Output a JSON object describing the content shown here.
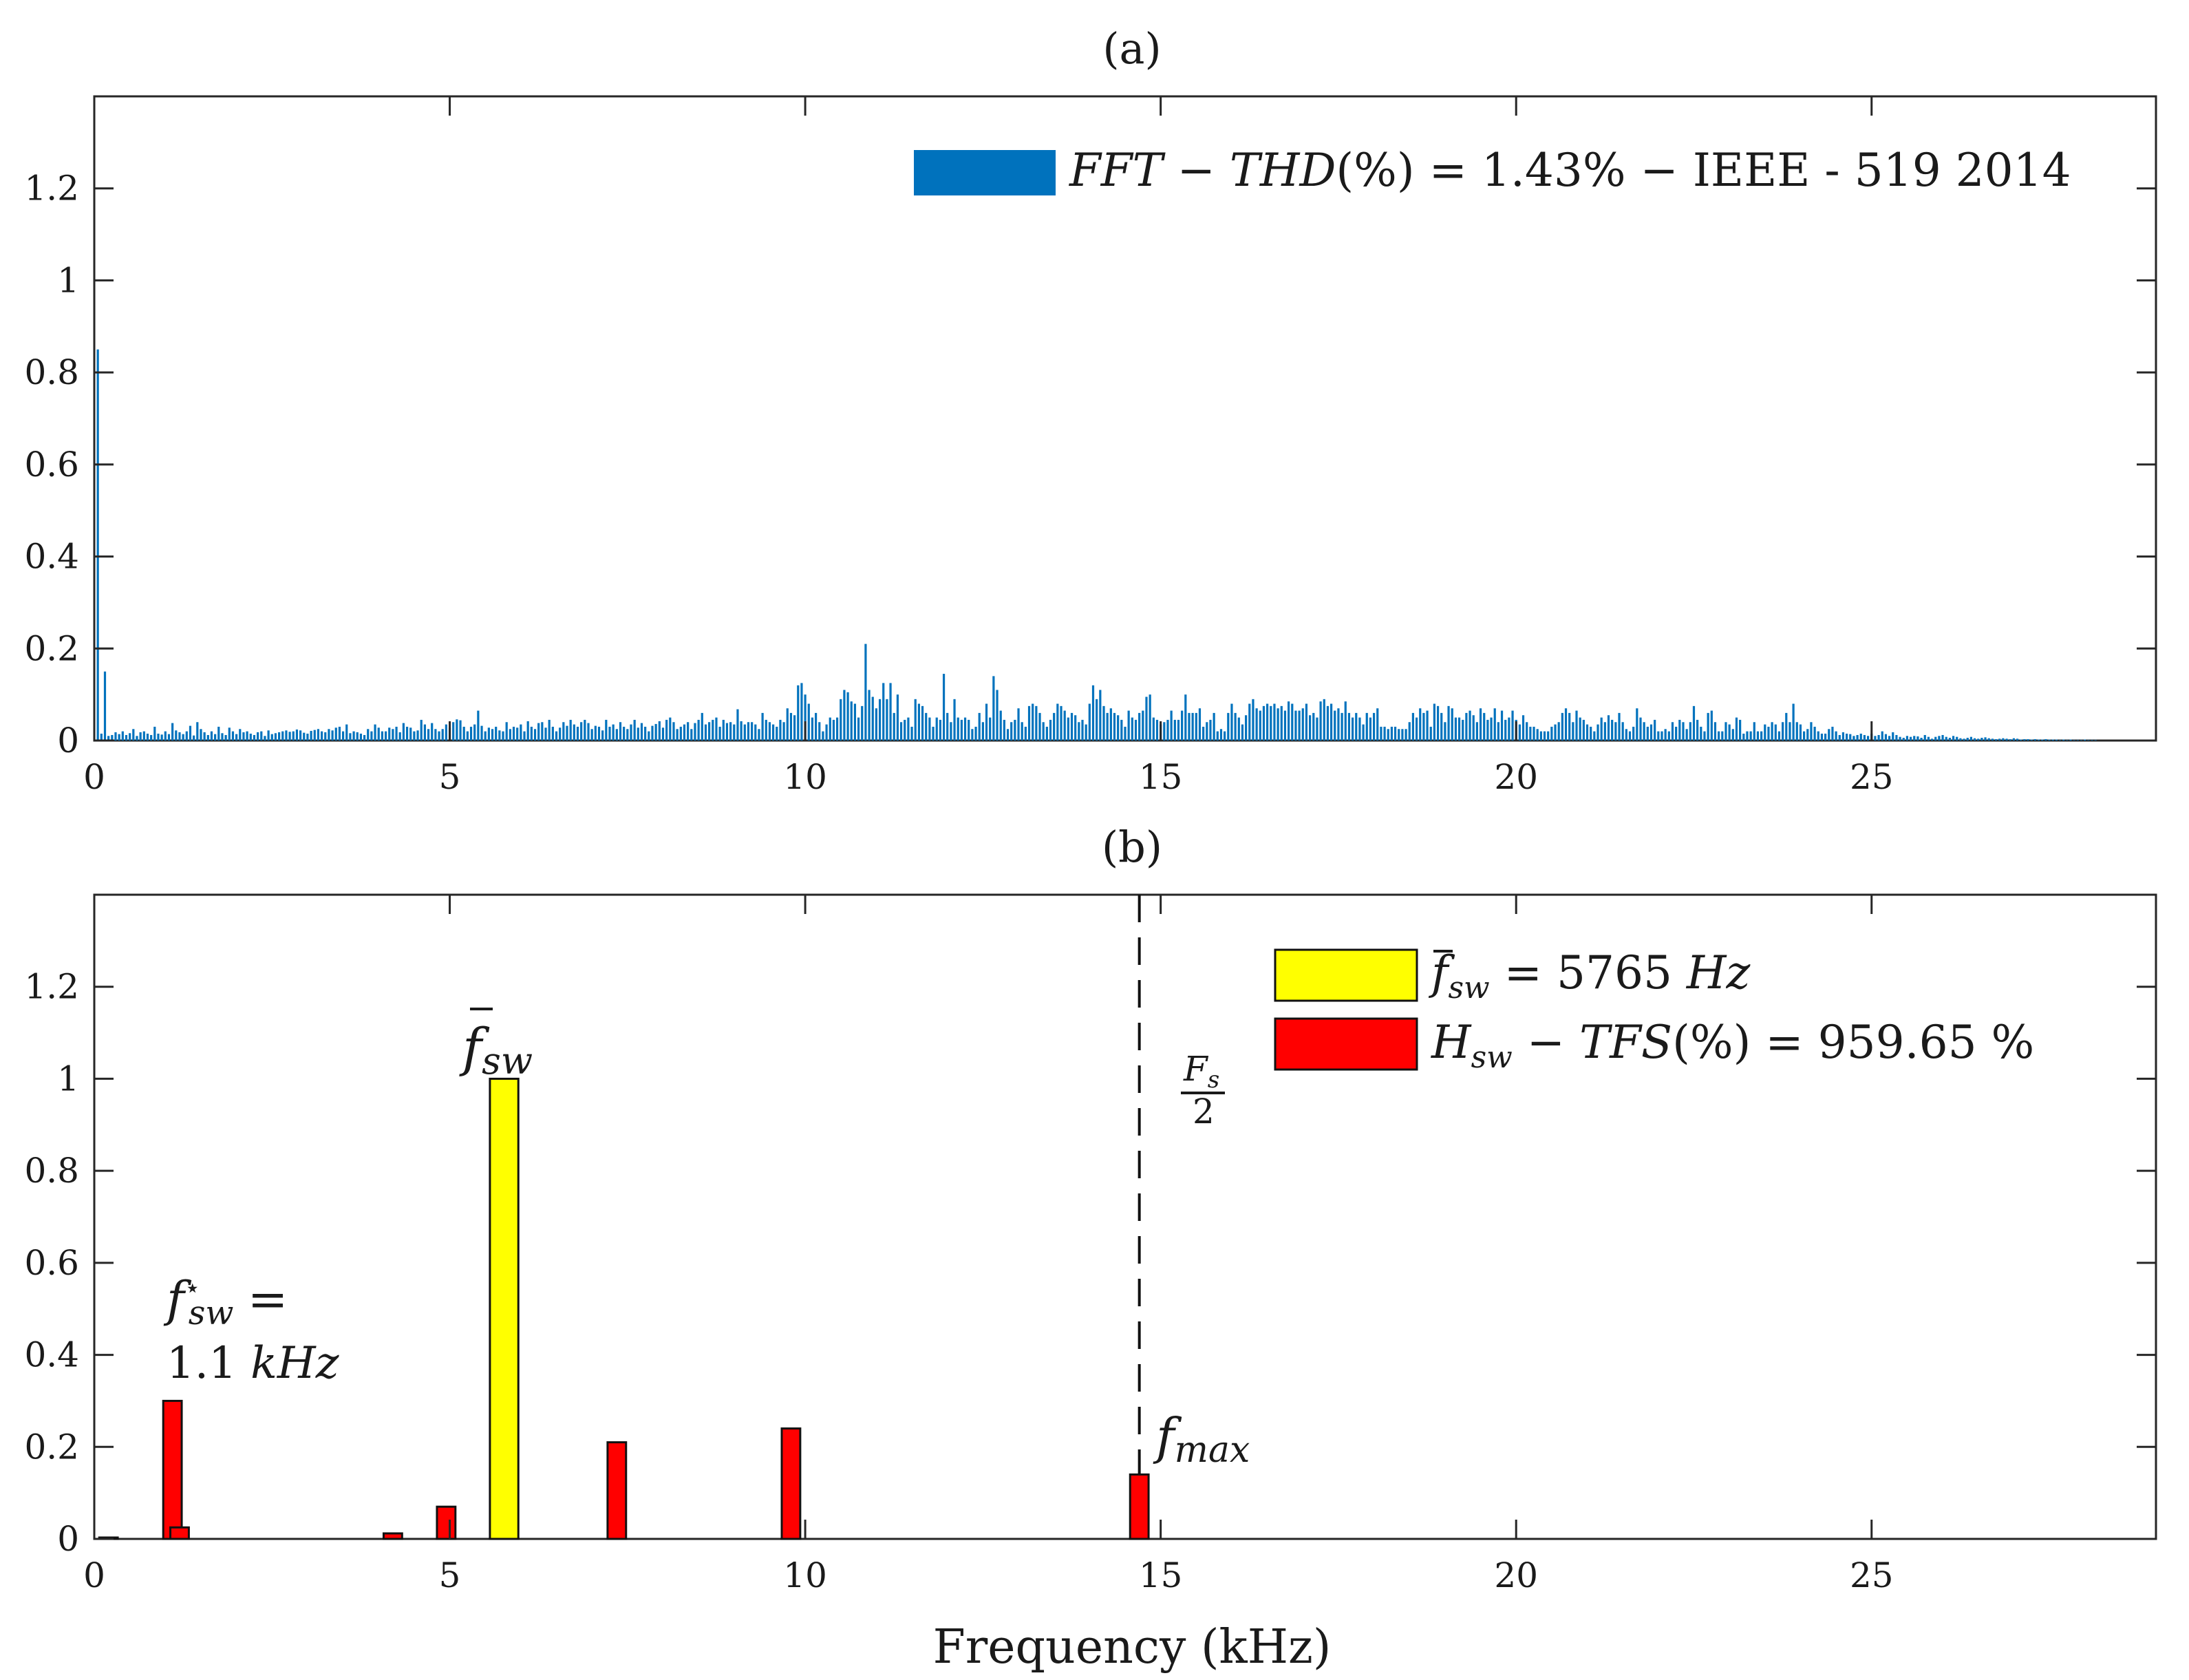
{
  "chart_data": [
    {
      "panel": "a",
      "title": "(a)",
      "type": "bar",
      "xlim": [
        0,
        29
      ],
      "ylim": [
        0,
        1.4
      ],
      "xticks": [
        0,
        5,
        10,
        15,
        20,
        25
      ],
      "xtick_labels": [
        "0",
        "5",
        "10",
        "15",
        "20",
        "25"
      ],
      "yticks": [
        0,
        0.2,
        0.4,
        0.6,
        0.8,
        1,
        1.2
      ],
      "ytick_labels": [
        "0",
        "0.2",
        "0.4",
        "0.6",
        "0.8",
        "1",
        "1.2"
      ],
      "xlabel": "",
      "ylabel": "",
      "color": "#0072bd",
      "legend": {
        "entries": [
          {
            "label": "FFT − THD(%) = 1.43% − IEEE - 519 2014",
            "color": "#0072bd"
          }
        ],
        "location": "top-right"
      },
      "series": [
        {
          "name": "FFT − THD(%) = 1.43% − IEEE - 519 2014",
          "bin_width_khz": 0.05,
          "x_start_khz": 0.05,
          "values": [
            0.85,
            0.015,
            0.15,
            0.01,
            0.012,
            0.018,
            0.014,
            0.02,
            0.012,
            0.016,
            0.025,
            0.01,
            0.018,
            0.02,
            0.015,
            0.012,
            0.03,
            0.015,
            0.013,
            0.02,
            0.014,
            0.038,
            0.022,
            0.018,
            0.014,
            0.02,
            0.032,
            0.011,
            0.04,
            0.025,
            0.018,
            0.012,
            0.02,
            0.014,
            0.03,
            0.016,
            0.012,
            0.028,
            0.02,
            0.014,
            0.025,
            0.018,
            0.02,
            0.015,
            0.012,
            0.018,
            0.02,
            0.01,
            0.022,
            0.014,
            0.016,
            0.018,
            0.02,
            0.022,
            0.019,
            0.02,
            0.024,
            0.022,
            0.017,
            0.015,
            0.021,
            0.023,
            0.025,
            0.02,
            0.018,
            0.025,
            0.022,
            0.028,
            0.03,
            0.02,
            0.035,
            0.016,
            0.02,
            0.018,
            0.015,
            0.012,
            0.025,
            0.02,
            0.035,
            0.028,
            0.02,
            0.02,
            0.028,
            0.025,
            0.03,
            0.018,
            0.038,
            0.03,
            0.028,
            0.02,
            0.022,
            0.045,
            0.035,
            0.025,
            0.038,
            0.025,
            0.02,
            0.025,
            0.035,
            0.028,
            0.04,
            0.046,
            0.044,
            0.03,
            0.02,
            0.03,
            0.035,
            0.065,
            0.032,
            0.02,
            0.028,
            0.025,
            0.03,
            0.022,
            0.02,
            0.04,
            0.025,
            0.03,
            0.028,
            0.035,
            0.02,
            0.042,
            0.03,
            0.025,
            0.038,
            0.04,
            0.028,
            0.045,
            0.03,
            0.02,
            0.028,
            0.04,
            0.032,
            0.045,
            0.035,
            0.03,
            0.04,
            0.045,
            0.038,
            0.025,
            0.032,
            0.03,
            0.022,
            0.045,
            0.03,
            0.035,
            0.025,
            0.04,
            0.03,
            0.025,
            0.035,
            0.045,
            0.028,
            0.038,
            0.03,
            0.02,
            0.032,
            0.036,
            0.042,
            0.028,
            0.045,
            0.05,
            0.04,
            0.025,
            0.03,
            0.035,
            0.04,
            0.025,
            0.038,
            0.045,
            0.06,
            0.035,
            0.04,
            0.045,
            0.05,
            0.03,
            0.045,
            0.038,
            0.04,
            0.035,
            0.068,
            0.042,
            0.035,
            0.04,
            0.04,
            0.035,
            0.025,
            0.06,
            0.045,
            0.04,
            0.035,
            0.03,
            0.045,
            0.04,
            0.07,
            0.06,
            0.055,
            0.12,
            0.125,
            0.1,
            0.08,
            0.05,
            0.06,
            0.04,
            0.02,
            0.035,
            0.05,
            0.045,
            0.05,
            0.09,
            0.11,
            0.105,
            0.085,
            0.08,
            0.05,
            0.075,
            0.21,
            0.11,
            0.095,
            0.07,
            0.09,
            0.125,
            0.09,
            0.125,
            0.06,
            0.1,
            0.04,
            0.045,
            0.05,
            0.03,
            0.09,
            0.08,
            0.075,
            0.06,
            0.05,
            0.03,
            0.05,
            0.045,
            0.145,
            0.06,
            0.04,
            0.09,
            0.05,
            0.045,
            0.05,
            0.045,
            0.025,
            0.03,
            0.06,
            0.04,
            0.08,
            0.05,
            0.14,
            0.11,
            0.065,
            0.045,
            0.025,
            0.04,
            0.045,
            0.07,
            0.04,
            0.03,
            0.075,
            0.08,
            0.075,
            0.06,
            0.04,
            0.03,
            0.045,
            0.06,
            0.08,
            0.075,
            0.065,
            0.05,
            0.06,
            0.055,
            0.04,
            0.045,
            0.035,
            0.08,
            0.12,
            0.09,
            0.11,
            0.075,
            0.06,
            0.07,
            0.06,
            0.055,
            0.045,
            0.03,
            0.065,
            0.05,
            0.045,
            0.06,
            0.065,
            0.095,
            0.1,
            0.05,
            0.045,
            0.035,
            0.04,
            0.045,
            0.065,
            0.045,
            0.045,
            0.065,
            0.1,
            0.06,
            0.06,
            0.06,
            0.07,
            0.03,
            0.04,
            0.045,
            0.06,
            0.02,
            0.025,
            0.02,
            0.06,
            0.08,
            0.06,
            0.05,
            0.035,
            0.055,
            0.08,
            0.09,
            0.07,
            0.065,
            0.075,
            0.08,
            0.075,
            0.08,
            0.07,
            0.075,
            0.065,
            0.085,
            0.08,
            0.065,
            0.065,
            0.07,
            0.08,
            0.055,
            0.06,
            0.05,
            0.085,
            0.09,
            0.075,
            0.08,
            0.065,
            0.07,
            0.06,
            0.085,
            0.06,
            0.05,
            0.06,
            0.05,
            0.035,
            0.06,
            0.05,
            0.06,
            0.07,
            0.03,
            0.03,
            0.025,
            0.03,
            0.03,
            0.025,
            0.025,
            0.025,
            0.04,
            0.06,
            0.05,
            0.07,
            0.06,
            0.065,
            0.03,
            0.08,
            0.075,
            0.06,
            0.04,
            0.075,
            0.07,
            0.05,
            0.05,
            0.045,
            0.06,
            0.065,
            0.055,
            0.04,
            0.07,
            0.06,
            0.045,
            0.05,
            0.07,
            0.04,
            0.065,
            0.045,
            0.05,
            0.065,
            0.045,
            0.035,
            0.055,
            0.04,
            0.03,
            0.03,
            0.025,
            0.02,
            0.02,
            0.02,
            0.03,
            0.035,
            0.04,
            0.06,
            0.07,
            0.06,
            0.04,
            0.065,
            0.05,
            0.045,
            0.035,
            0.03,
            0.02,
            0.035,
            0.05,
            0.04,
            0.055,
            0.045,
            0.04,
            0.06,
            0.04,
            0.025,
            0.02,
            0.03,
            0.07,
            0.05,
            0.04,
            0.03,
            0.035,
            0.045,
            0.02,
            0.02,
            0.025,
            0.02,
            0.04,
            0.03,
            0.045,
            0.04,
            0.025,
            0.04,
            0.075,
            0.045,
            0.03,
            0.02,
            0.06,
            0.065,
            0.04,
            0.02,
            0.02,
            0.04,
            0.035,
            0.025,
            0.05,
            0.045,
            0.015,
            0.02,
            0.02,
            0.04,
            0.02,
            0.02,
            0.035,
            0.03,
            0.04,
            0.035,
            0.02,
            0.04,
            0.06,
            0.04,
            0.08,
            0.04,
            0.035,
            0.02,
            0.025,
            0.04,
            0.03,
            0.02,
            0.015,
            0.015,
            0.025,
            0.03,
            0.02,
            0.012,
            0.018,
            0.015,
            0.014,
            0.01,
            0.012,
            0.015,
            0.012,
            0.01,
            0.015,
            0.01,
            0.012,
            0.02,
            0.014,
            0.01,
            0.018,
            0.012,
            0.008,
            0.006,
            0.01,
            0.008,
            0.01,
            0.009,
            0.006,
            0.012,
            0.008,
            0.004,
            0.008,
            0.01,
            0.012,
            0.008,
            0.006,
            0.01,
            0.008,
            0.005,
            0.004,
            0.006,
            0.008,
            0.005,
            0.004,
            0.006,
            0.007,
            0.005,
            0.004,
            0.003,
            0.004,
            0.005,
            0.004,
            0.003,
            0.005,
            0.004,
            0.002,
            0.003,
            0.003,
            0.002,
            0.003,
            0.002,
            0.002,
            0.003,
            0.002,
            0.002,
            0.002,
            0.001,
            0.002,
            0.001,
            0.002,
            0.001,
            0.001,
            0.001,
            0.002,
            0.001,
            0.001,
            0.001
          ]
        }
      ]
    },
    {
      "panel": "b",
      "title": "(b)",
      "type": "bar",
      "xlim": [
        0,
        29
      ],
      "ylim": [
        0,
        1.4
      ],
      "xticks": [
        0,
        5,
        10,
        15,
        20,
        25
      ],
      "xtick_labels": [
        "0",
        "5",
        "10",
        "15",
        "20",
        "25"
      ],
      "yticks": [
        0,
        0.2,
        0.4,
        0.6,
        0.8,
        1,
        1.2
      ],
      "ytick_labels": [
        "0",
        "0.2",
        "0.4",
        "0.6",
        "0.8",
        "1",
        "1.2"
      ],
      "xlabel": "Frequency (kHz)",
      "ylabel": "",
      "legend": {
        "entries": [
          {
            "label": "f̄sw = 5765 Hz",
            "color": "#ffff00"
          },
          {
            "label": "Hsw − TFS(%) = 959.65 %",
            "color": "#ff0000"
          }
        ],
        "location": "top-right"
      },
      "series": [
        {
          "name": "f̄sw = 5765 Hz",
          "color": "#ffff00",
          "bar_width_khz": 0.4,
          "x": [
            5.765
          ],
          "values": [
            1.0
          ]
        },
        {
          "name": "Hsw − TFS(%) = 959.65 %",
          "color": "#ff0000",
          "bar_width_khz": 0.26,
          "x": [
            0.2,
            1.1,
            1.2,
            4.2,
            4.95,
            7.35,
            9.8,
            14.7
          ],
          "values": [
            0.003,
            0.3,
            0.025,
            0.012,
            0.07,
            0.21,
            0.24,
            0.14
          ]
        }
      ],
      "reference_line": {
        "x": 14.7,
        "style": "dashed",
        "label": "Fs / 2"
      },
      "annotations": {
        "fbar_label": "f̄sw",
        "fstar_line1": "f*sw =",
        "fstar_line2": "1.1 kHz",
        "fmax_label": "fmax",
        "fs_half_num": "Fs",
        "fs_half_den": "2"
      }
    }
  ],
  "text": {
    "fft": "FFT",
    "minus": "−",
    "thd": "THD",
    "pct_paren": "(%)",
    "eq": "=",
    "thd_value": "1.43%",
    "ieee": "IEEE - 519 2014",
    "f": "f",
    "sw": "sw",
    "fbar_value": "5765",
    "hz": "Hz",
    "H": "H",
    "tfs": "TFS",
    "tfs_value": "959.65 %",
    "star": "⋆",
    "khz_value": "1.1",
    "khz": "kHz",
    "max": "max",
    "Fs": "F",
    "s": "s",
    "two": "2"
  }
}
